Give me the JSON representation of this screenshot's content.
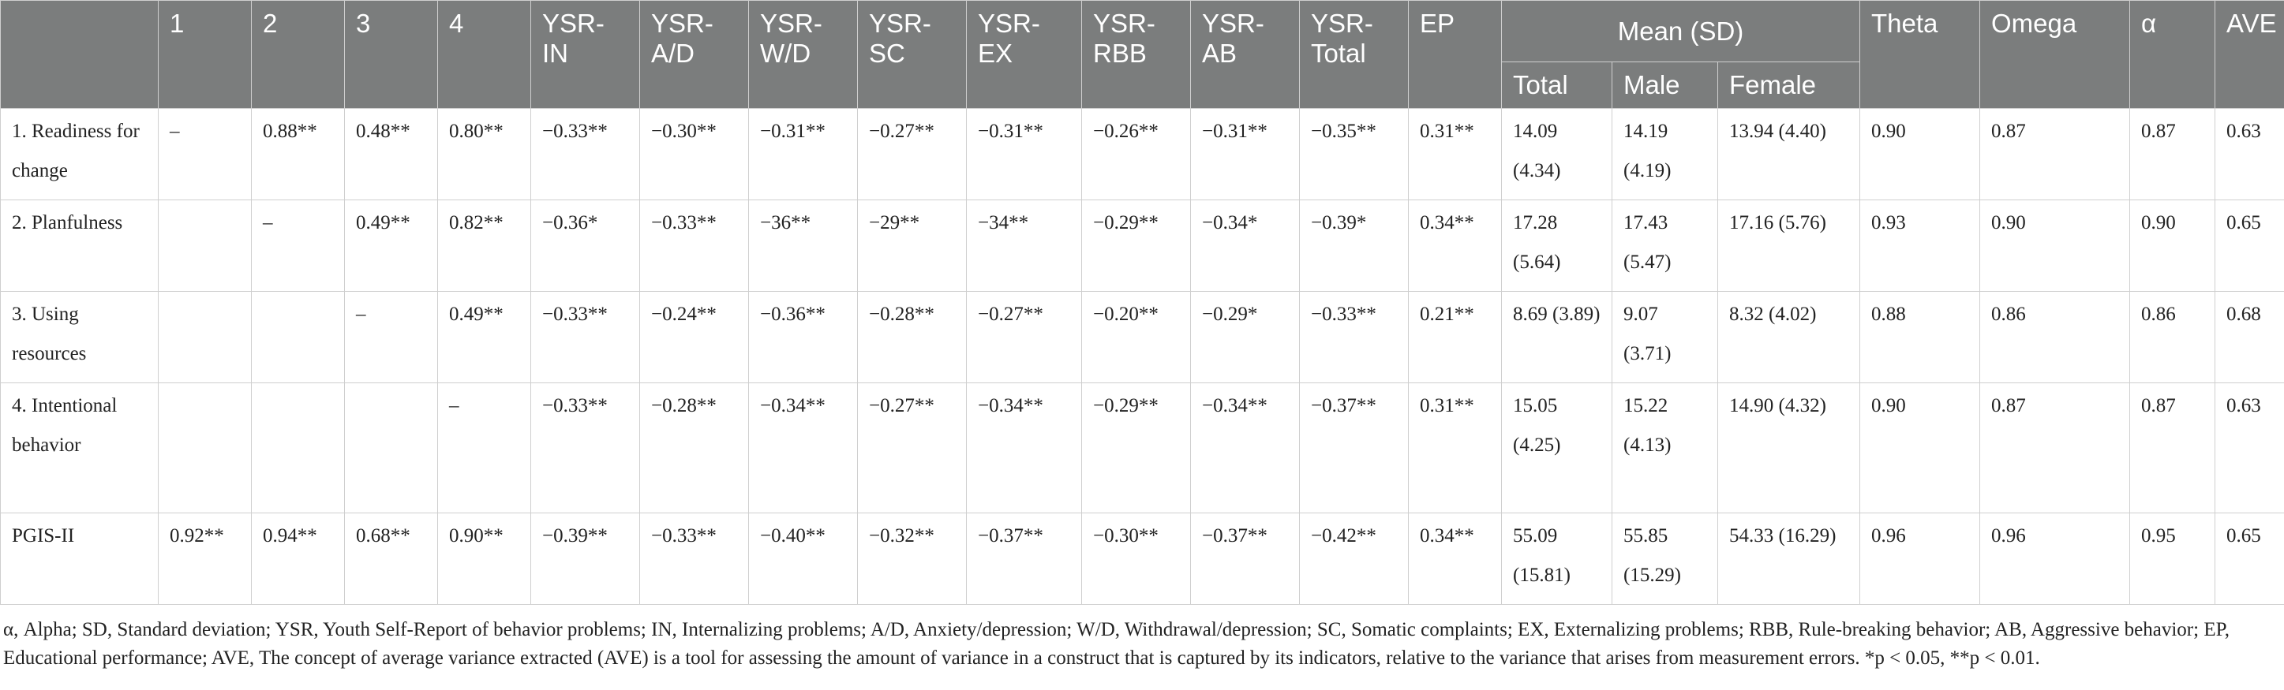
{
  "headers": {
    "single": [
      "",
      "1",
      "2",
      "3",
      "4",
      "YSR-IN",
      "YSR-A/D",
      "YSR-W/D",
      "YSR-SC",
      "YSR-EX",
      "YSR-RBB",
      "YSR-AB",
      "YSR-Total",
      "EP"
    ],
    "mean_group": "Mean (SD)",
    "mean_sub": [
      "Total",
      "Male",
      "Female"
    ],
    "trailing": [
      "Theta",
      "Omega",
      "α",
      "AVE"
    ]
  },
  "rows": [
    {
      "label": "1. Readiness for change",
      "cells": [
        "–",
        "0.88**",
        "0.48**",
        "0.80**",
        "−0.33**",
        "−0.30**",
        "−0.31**",
        "−0.27**",
        "−0.31**",
        "−0.26**",
        "−0.31**",
        "−0.35**",
        "0.31**",
        "14.09 (4.34)",
        "14.19 (4.19)",
        "13.94 (4.40)",
        "0.90",
        "0.87",
        "0.87",
        "0.63"
      ]
    },
    {
      "label": "2. Planfulness",
      "cells": [
        "",
        "–",
        "0.49**",
        "0.82**",
        "−0.36*",
        "−0.33**",
        "−36**",
        "−29**",
        "−34**",
        "−0.29**",
        "−0.34*",
        "−0.39*",
        "0.34**",
        "17.28 (5.64)",
        "17.43 (5.47)",
        "17.16 (5.76)",
        "0.93",
        "0.90",
        "0.90",
        "0.65"
      ]
    },
    {
      "label": "3. Using resources",
      "cells": [
        "",
        "",
        "–",
        "0.49**",
        "−0.33**",
        "−0.24**",
        "−0.36**",
        "−0.28**",
        "−0.27**",
        "−0.20**",
        "−0.29*",
        "−0.33**",
        "0.21**",
        "8.69 (3.89)",
        "9.07 (3.71)",
        "8.32 (4.02)",
        "0.88",
        "0.86",
        "0.86",
        "0.68"
      ]
    },
    {
      "label": "4. Intentional behavior",
      "cells": [
        "",
        "",
        "",
        "–",
        "−0.33**",
        "−0.28**",
        "−0.34**",
        "−0.27**",
        "−0.34**",
        "−0.29**",
        "−0.34**",
        "−0.37**",
        "0.31**",
        "15.05 (4.25)",
        "15.22 (4.13)",
        "14.90 (4.32)",
        "0.90",
        "0.87",
        "0.87",
        "0.63"
      ]
    },
    {
      "label": "PGIS-II",
      "cells": [
        "0.92**",
        "0.94**",
        "0.68**",
        "0.90**",
        "−0.39**",
        "−0.33**",
        "−0.40**",
        "−0.32**",
        "−0.37**",
        "−0.30**",
        "−0.37**",
        "−0.42**",
        "0.34**",
        "55.09 (15.81)",
        "55.85 (15.29)",
        "54.33 (16.29)",
        "0.96",
        "0.96",
        "0.95",
        "0.65"
      ]
    }
  ],
  "footnote": "α, Alpha; SD, Standard deviation; YSR, Youth Self-Report of behavior problems; IN, Internalizing problems; A/D, Anxiety/depression; W/D, Withdrawal/depression; SC, Somatic complaints; EX, Externalizing problems; RBB, Rule-breaking behavior; AB, Aggressive behavior; EP, Educational performance; AVE, The concept of average variance extracted (AVE) is a tool for assessing the amount of variance in a construct that is captured by its indicators, relative to the variance that arises from measurement errors. *p < 0.05, **p < 0.01."
}
